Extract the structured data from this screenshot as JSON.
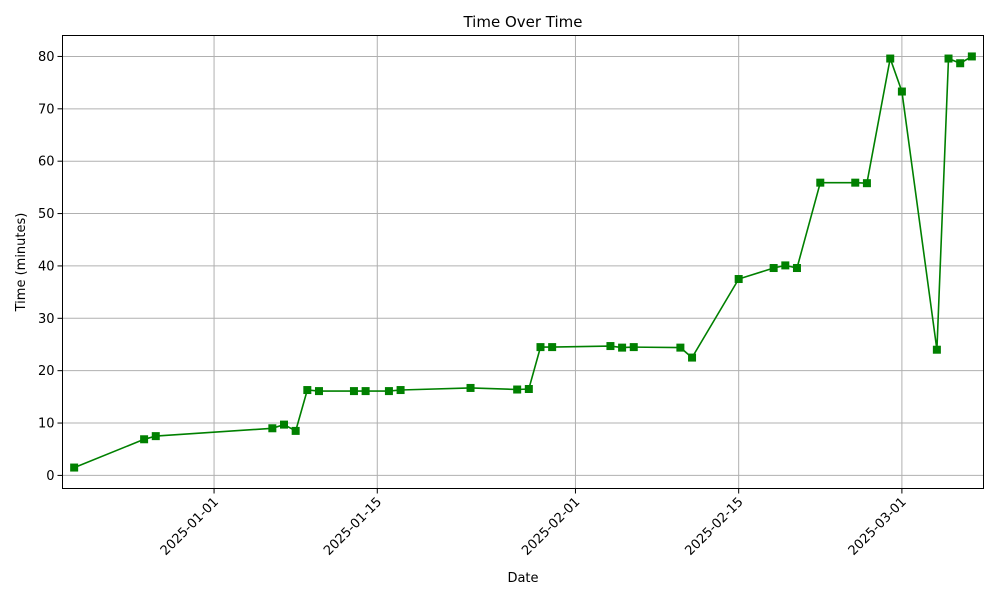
{
  "chart_data": {
    "type": "line",
    "title": "Time Over Time",
    "xlabel": "Date",
    "ylabel": "Time (minutes)",
    "x_type": "date",
    "xlim": [
      "2024-12-19",
      "2025-03-08"
    ],
    "ylim": [
      -2.5,
      84
    ],
    "x_ticks": [
      "2025-01-01",
      "2025-01-15",
      "2025-02-01",
      "2025-02-15",
      "2025-03-01"
    ],
    "y_ticks": [
      0,
      10,
      20,
      30,
      40,
      50,
      60,
      70,
      80
    ],
    "grid": true,
    "legend": "none",
    "series": [
      {
        "color": "#008000",
        "marker": "square",
        "points": [
          {
            "x": "2024-12-20",
            "y": 1.5
          },
          {
            "x": "2024-12-26",
            "y": 6.9
          },
          {
            "x": "2024-12-27",
            "y": 7.5
          },
          {
            "x": "2025-01-06",
            "y": 9.0
          },
          {
            "x": "2025-01-07",
            "y": 9.7
          },
          {
            "x": "2025-01-08",
            "y": 8.5
          },
          {
            "x": "2025-01-09",
            "y": 16.3
          },
          {
            "x": "2025-01-10",
            "y": 16.1
          },
          {
            "x": "2025-01-13",
            "y": 16.1
          },
          {
            "x": "2025-01-14",
            "y": 16.1
          },
          {
            "x": "2025-01-16",
            "y": 16.1
          },
          {
            "x": "2025-01-17",
            "y": 16.3
          },
          {
            "x": "2025-01-23",
            "y": 16.7
          },
          {
            "x": "2025-01-27",
            "y": 16.4
          },
          {
            "x": "2025-01-28",
            "y": 16.5
          },
          {
            "x": "2025-01-29",
            "y": 24.5
          },
          {
            "x": "2025-01-30",
            "y": 24.5
          },
          {
            "x": "2025-02-04",
            "y": 24.7
          },
          {
            "x": "2025-02-05",
            "y": 24.4
          },
          {
            "x": "2025-02-06",
            "y": 24.5
          },
          {
            "x": "2025-02-10",
            "y": 24.4
          },
          {
            "x": "2025-02-11",
            "y": 22.5
          },
          {
            "x": "2025-02-15",
            "y": 37.5
          },
          {
            "x": "2025-02-18",
            "y": 39.6
          },
          {
            "x": "2025-02-19",
            "y": 40.1
          },
          {
            "x": "2025-02-20",
            "y": 39.6
          },
          {
            "x": "2025-02-22",
            "y": 55.9
          },
          {
            "x": "2025-02-25",
            "y": 55.9
          },
          {
            "x": "2025-02-26",
            "y": 55.8
          },
          {
            "x": "2025-02-28",
            "y": 79.6
          },
          {
            "x": "2025-03-01",
            "y": 73.3
          },
          {
            "x": "2025-03-04",
            "y": 24.0
          },
          {
            "x": "2025-03-05",
            "y": 79.6
          },
          {
            "x": "2025-03-06",
            "y": 78.7
          },
          {
            "x": "2025-03-07",
            "y": 80.0
          }
        ]
      }
    ]
  }
}
